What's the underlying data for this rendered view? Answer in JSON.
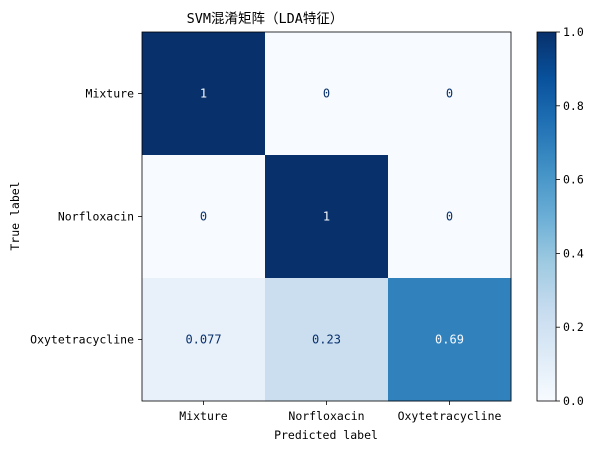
{
  "chart_data": {
    "type": "heatmap",
    "title": "SVM混淆矩阵（LDA特征）",
    "xlabel": "Predicted label",
    "ylabel": "True label",
    "x_categories": [
      "Mixture",
      "Norfloxacin",
      "Oxytetracycline"
    ],
    "y_categories": [
      "Mixture",
      "Norfloxacin",
      "Oxytetracycline"
    ],
    "values": [
      [
        1,
        0,
        0
      ],
      [
        0,
        1,
        0
      ],
      [
        0.077,
        0.23,
        0.69
      ]
    ],
    "cell_labels": [
      [
        "1",
        "0",
        "0"
      ],
      [
        "0",
        "1",
        "0"
      ],
      [
        "0.077",
        "0.23",
        "0.69"
      ]
    ],
    "colormap": "Blues",
    "colorbar": {
      "range": [
        0,
        1
      ],
      "ticks": [
        0,
        0.2,
        0.4,
        0.6,
        0.8,
        1.0
      ],
      "tick_labels": [
        "0.0",
        "0.2",
        "0.4",
        "0.6",
        "0.8",
        "1.0"
      ]
    },
    "grid": false
  }
}
